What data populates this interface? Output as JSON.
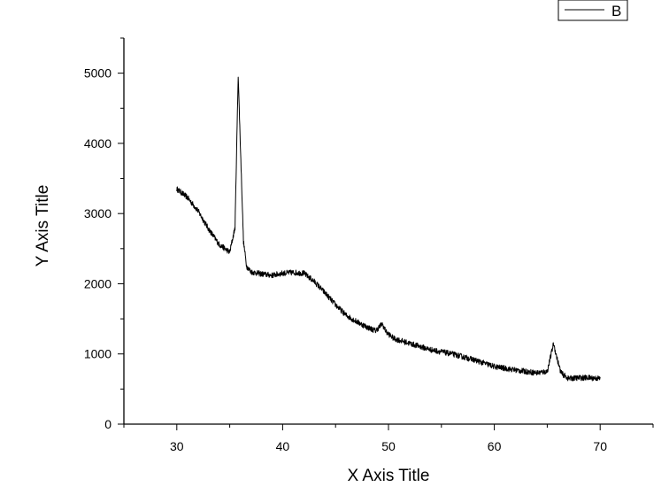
{
  "chart_data": {
    "type": "line",
    "xlabel": "X Axis Title",
    "ylabel": "Y Axis Title",
    "xlim": [
      25,
      75
    ],
    "ylim": [
      0,
      5500
    ],
    "x_ticks": [
      30,
      40,
      50,
      60,
      70
    ],
    "y_ticks": [
      0,
      1000,
      2000,
      3000,
      4000,
      5000
    ],
    "grid": false,
    "legend": {
      "position": "top-right",
      "entries": [
        "B"
      ]
    },
    "colors": {
      "line": "#000000",
      "axis": "#000000",
      "background": "#ffffff"
    },
    "series": [
      {
        "name": "B",
        "x": [
          30,
          31,
          32,
          33,
          34,
          35,
          35.5,
          35.8,
          36.0,
          36.3,
          36.6,
          37,
          38,
          39,
          40,
          41,
          42,
          43,
          44,
          45,
          46,
          47,
          48,
          48.8,
          49.4,
          49.8,
          50.5,
          52,
          54,
          56,
          58,
          60,
          62,
          64,
          65,
          65.6,
          65.9,
          66.3,
          67,
          68,
          69,
          70
        ],
        "y": [
          3350,
          3230,
          3040,
          2780,
          2560,
          2450,
          2800,
          4980,
          4000,
          2600,
          2250,
          2170,
          2140,
          2120,
          2150,
          2160,
          2150,
          2030,
          1870,
          1700,
          1550,
          1460,
          1380,
          1330,
          1430,
          1310,
          1220,
          1150,
          1060,
          1000,
          920,
          820,
          770,
          730,
          750,
          1150,
          950,
          730,
          650,
          660,
          660,
          650
        ]
      }
    ]
  }
}
